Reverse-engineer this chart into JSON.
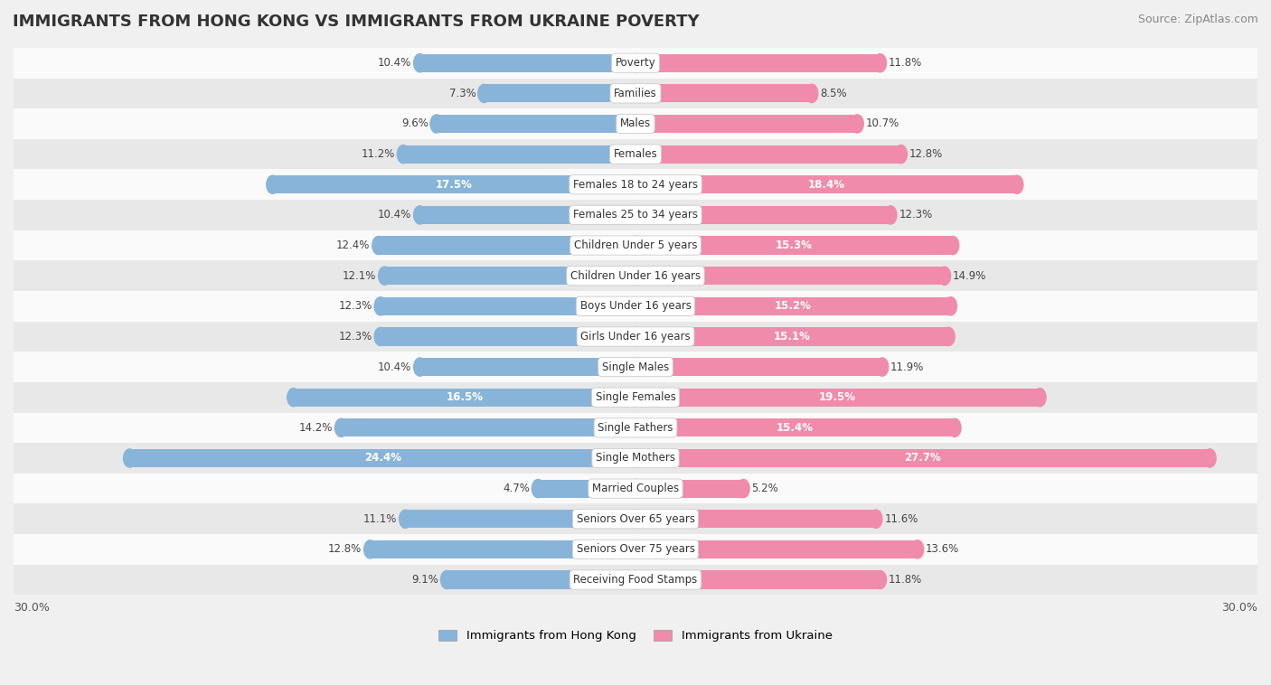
{
  "title": "IMMIGRANTS FROM HONG KONG VS IMMIGRANTS FROM UKRAINE POVERTY",
  "source": "Source: ZipAtlas.com",
  "categories": [
    "Poverty",
    "Families",
    "Males",
    "Females",
    "Females 18 to 24 years",
    "Females 25 to 34 years",
    "Children Under 5 years",
    "Children Under 16 years",
    "Boys Under 16 years",
    "Girls Under 16 years",
    "Single Males",
    "Single Females",
    "Single Fathers",
    "Single Mothers",
    "Married Couples",
    "Seniors Over 65 years",
    "Seniors Over 75 years",
    "Receiving Food Stamps"
  ],
  "hong_kong": [
    10.4,
    7.3,
    9.6,
    11.2,
    17.5,
    10.4,
    12.4,
    12.1,
    12.3,
    12.3,
    10.4,
    16.5,
    14.2,
    24.4,
    4.7,
    11.1,
    12.8,
    9.1
  ],
  "ukraine": [
    11.8,
    8.5,
    10.7,
    12.8,
    18.4,
    12.3,
    15.3,
    14.9,
    15.2,
    15.1,
    11.9,
    19.5,
    15.4,
    27.7,
    5.2,
    11.6,
    13.6,
    11.8
  ],
  "hk_color": "#89b4d9",
  "uk_color": "#f08bab",
  "hk_color_highlight": "#6a9ec9",
  "uk_color_highlight": "#e8607a",
  "axis_max": 30.0,
  "bar_height": 0.6,
  "background_color": "#f0f0f0",
  "row_bg_light": "#fafafa",
  "row_bg_dark": "#e8e8e8",
  "x_axis_label_left": "30.0%",
  "x_axis_label_right": "30.0%",
  "inside_threshold": 15.0
}
